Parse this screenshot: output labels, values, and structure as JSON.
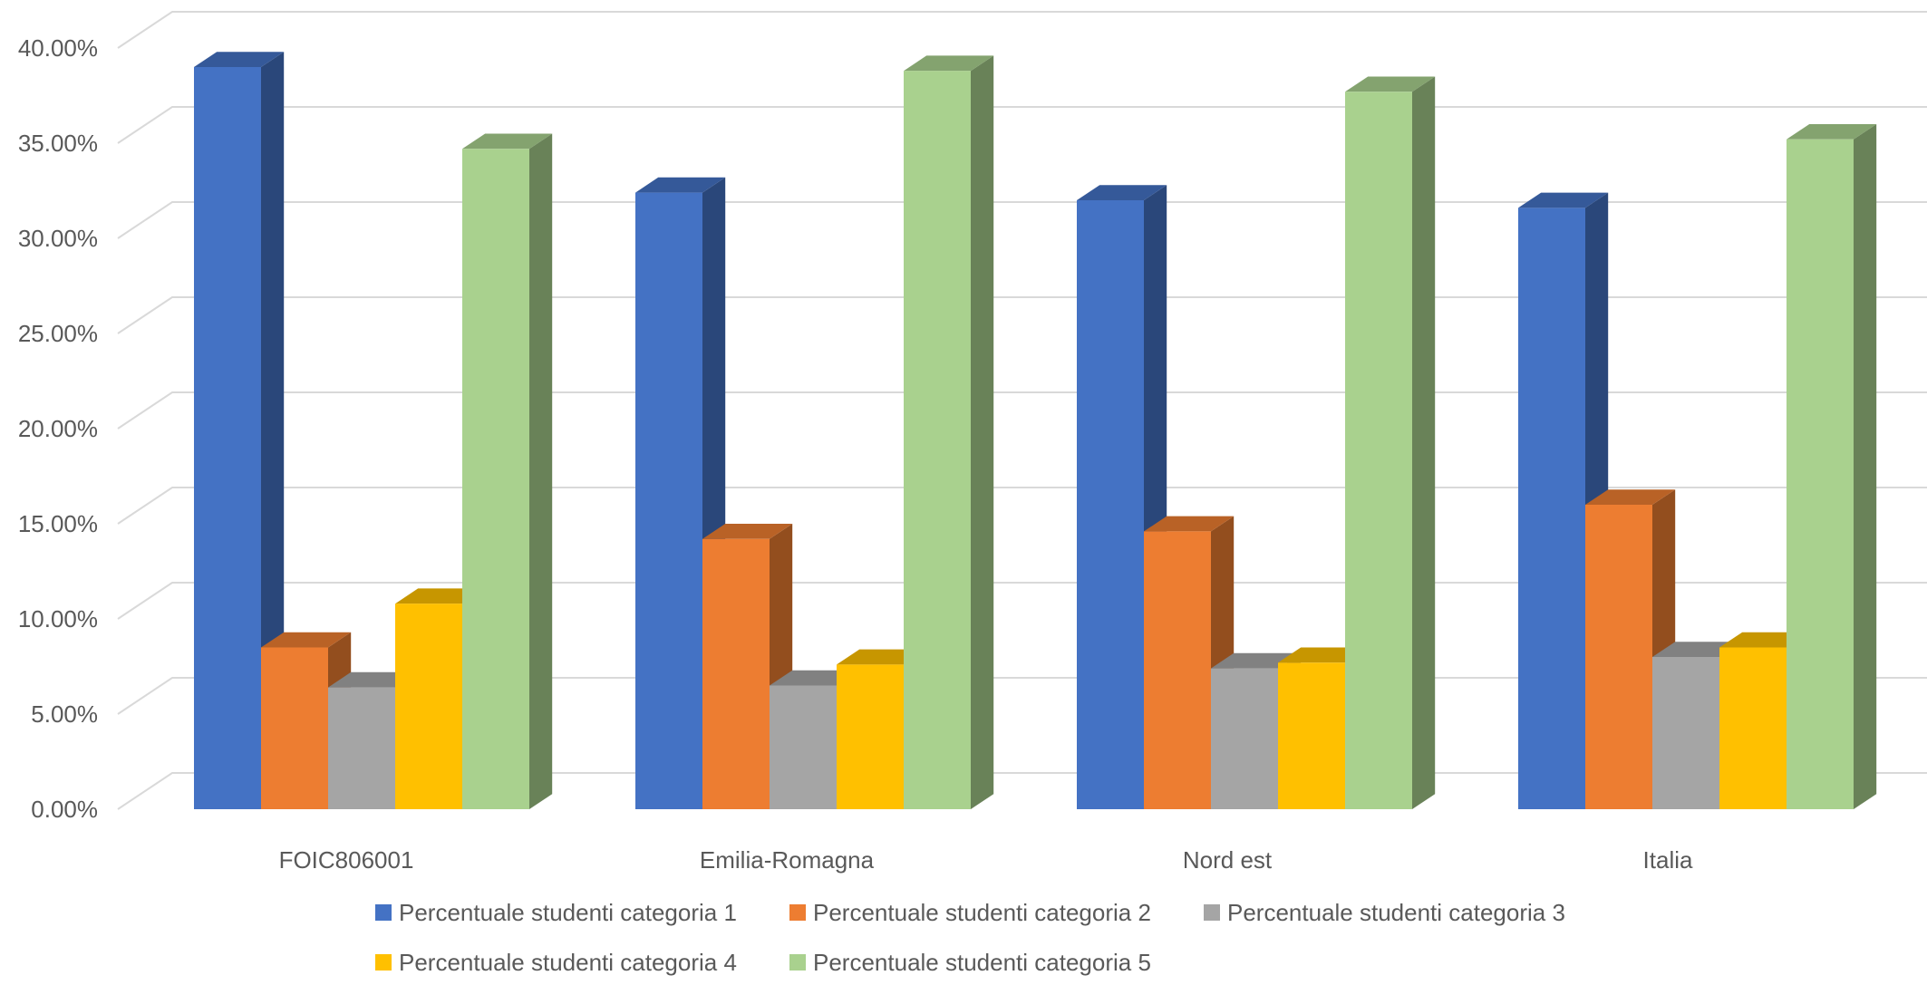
{
  "chart_data": {
    "type": "bar",
    "style": "3d-clustered-column",
    "categories": [
      "FOIC806001",
      "Emilia-Romagna",
      "Nord est",
      "Italia"
    ],
    "series": [
      {
        "name": "Percentuale studenti categoria 1",
        "color": "#4472C4",
        "values": [
          39.0,
          32.4,
          32.0,
          31.6
        ]
      },
      {
        "name": "Percentuale studenti categoria 2",
        "color": "#ED7D31",
        "values": [
          8.5,
          14.2,
          14.6,
          16.0
        ]
      },
      {
        "name": "Percentuale studenti categoria 3",
        "color": "#A5A5A5",
        "values": [
          6.4,
          6.5,
          7.4,
          8.0
        ]
      },
      {
        "name": "Percentuale studenti categoria 4",
        "color": "#FFC000",
        "values": [
          10.8,
          7.6,
          7.7,
          8.5
        ]
      },
      {
        "name": "Percentuale studenti categoria 5",
        "color": "#A9D18E",
        "values": [
          34.7,
          38.8,
          37.7,
          35.2
        ]
      }
    ],
    "yticks": [
      "0.00%",
      "5.00%",
      "10.00%",
      "15.00%",
      "20.00%",
      "25.00%",
      "30.00%",
      "35.00%",
      "40.00%"
    ],
    "ylim": [
      0,
      40
    ],
    "ystep": 5,
    "grid": true,
    "legend_position": "bottom",
    "title": "",
    "xlabel": "",
    "ylabel": ""
  }
}
